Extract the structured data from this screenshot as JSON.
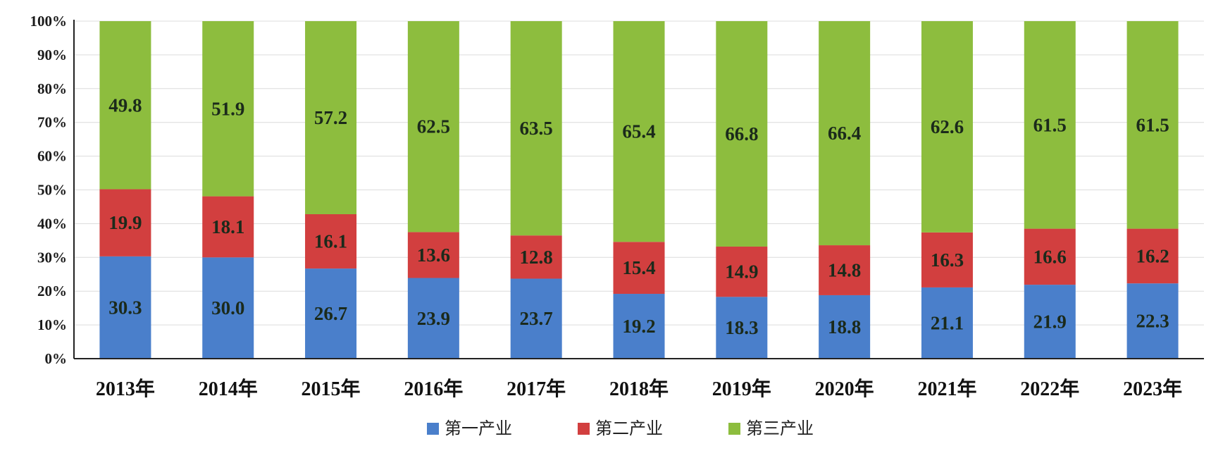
{
  "chart_data": {
    "type": "bar",
    "stacked": true,
    "percent": true,
    "categories": [
      "2013年",
      "2014年",
      "2015年",
      "2016年",
      "2017年",
      "2018年",
      "2019年",
      "2020年",
      "2021年",
      "2022年",
      "2023年"
    ],
    "series": [
      {
        "name": "第一产业",
        "color": "#4a7fcb",
        "values": [
          30.3,
          30.0,
          26.7,
          23.9,
          23.7,
          19.2,
          18.3,
          18.8,
          21.1,
          21.9,
          22.3
        ],
        "labels": [
          "30.3",
          "30.0",
          "26.7",
          "23.9",
          "23.7",
          "19.2",
          "18.3",
          "18.8",
          "21.1",
          "21.9",
          "22.3"
        ]
      },
      {
        "name": "第二产业",
        "color": "#d23f3f",
        "values": [
          19.9,
          18.1,
          16.1,
          13.6,
          12.8,
          15.4,
          14.9,
          14.8,
          16.3,
          16.6,
          16.2
        ],
        "labels": [
          "19.9",
          "18.1",
          "16.1",
          "13.6",
          "12.8",
          "15.4",
          "14.9",
          "14.8",
          "16.3",
          "16.6",
          "16.2"
        ]
      },
      {
        "name": "第三产业",
        "color": "#8dbd3e",
        "values": [
          49.8,
          51.9,
          57.2,
          62.5,
          63.5,
          65.4,
          66.8,
          66.4,
          62.6,
          61.5,
          61.5
        ],
        "labels": [
          "49.8",
          "51.9",
          "57.2",
          "62.5",
          "63.5",
          "65.4",
          "66.8",
          "66.4",
          "62.6",
          "61.5",
          "61.5"
        ]
      }
    ],
    "yticks": [
      "0%",
      "10%",
      "20%",
      "30%",
      "40%",
      "50%",
      "60%",
      "70%",
      "80%",
      "90%",
      "100%"
    ],
    "ylim": [
      0,
      100
    ],
    "grid": true,
    "legend": "bottom",
    "title": "",
    "xlabel": "",
    "ylabel": ""
  }
}
